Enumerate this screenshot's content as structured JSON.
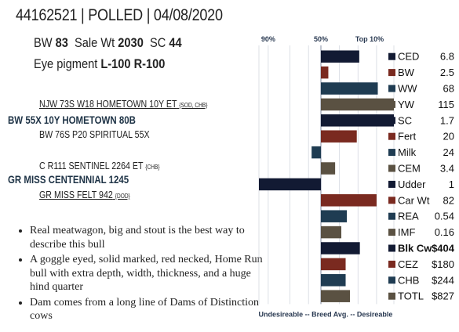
{
  "header": {
    "title": "44162521 | POLLED | 04/08/2020"
  },
  "stats": {
    "bw_label": "BW",
    "bw_value": "83",
    "sale_label": "Sale Wt",
    "sale_value": "2030",
    "sc_label": "SC",
    "sc_value": "44",
    "eye_label": "Eye pigment",
    "eye_value": "L-100  R-100"
  },
  "pedigree": {
    "sire_sire": "NJW 73S W18 HOMETOWN 10Y ET",
    "sire_sire_tag": "{SOD, CHB}",
    "sire": "BW 55X 10Y HOMETOWN 80B",
    "sire_dam": "BW 76S P20 SPIRITUAL 55X",
    "dam_sire": "C R111 SENTINEL 2264 ET",
    "dam_sire_tag": "{CHB}",
    "dam": "GR MISS CENTENNIAL 1245",
    "dam_dam": "GR MISS FELT 942",
    "dam_dam_tag": "{DOD}"
  },
  "bullets": [
    "Real meatwagon, big and stout is the best way to describe this bull",
    "A goggle eyed, solid marked, red necked, Home Run bull with extra depth, width, thickness, and a huge hind quarter",
    "Dam comes from a long line of Dams of Distinction cows"
  ],
  "chart_data": {
    "type": "bar",
    "orientation": "horizontal",
    "top_labels": [
      "90%",
      "50%",
      "Top 10%"
    ],
    "bottom_label": "Undesireable -- Breed Avg. --  Desireable",
    "scale_note": "bar extends right of breed-average line when desirable, left when undesirable; values are percentile-like scores from -1 (bottom) to 1 (top 10%)",
    "traits": [
      {
        "name": "CED",
        "value": "6.8",
        "score": 0.62,
        "color": "#121a33",
        "bold": false
      },
      {
        "name": "BW",
        "value": "2.5",
        "score": 0.12,
        "color": "#7a2a20",
        "bold": false
      },
      {
        "name": "WW",
        "value": "68",
        "score": 0.92,
        "color": "#1f3c52",
        "bold": false
      },
      {
        "name": "YW",
        "value": "115",
        "score": 1.18,
        "color": "#5a5142",
        "bold": false
      },
      {
        "name": "SC",
        "value": "1.7",
        "score": 1.18,
        "color": "#121a33",
        "bold": false
      },
      {
        "name": "Fert",
        "value": "20",
        "score": 0.58,
        "color": "#7a2a20",
        "bold": false
      },
      {
        "name": "Milk",
        "value": "24",
        "score": -0.15,
        "color": "#1f3c52",
        "bold": false
      },
      {
        "name": "CEM",
        "value": "3.4",
        "score": 0.23,
        "color": "#5a5142",
        "bold": false
      },
      {
        "name": "Udder",
        "value": "1",
        "score": -1.0,
        "color": "#121a33",
        "bold": false
      },
      {
        "name": "Car Wt",
        "value": "82",
        "score": 0.9,
        "color": "#7a2a20",
        "bold": false
      },
      {
        "name": "REA",
        "value": "0.54",
        "score": 0.42,
        "color": "#1f3c52",
        "bold": false
      },
      {
        "name": "IMF",
        "value": "0.16",
        "score": 0.33,
        "color": "#5a5142",
        "bold": false
      },
      {
        "name": "Blk Cw",
        "value": "$404",
        "score": 0.63,
        "color": "#121a33",
        "bold": true
      },
      {
        "name": "CEZ",
        "value": "$180",
        "score": 0.4,
        "color": "#7a2a20",
        "bold": false
      },
      {
        "name": "CHB",
        "value": "$244",
        "score": 0.4,
        "color": "#1f3c52",
        "bold": false
      },
      {
        "name": "TOTL",
        "value": "$827",
        "score": 0.47,
        "color": "#5a5142",
        "bold": false
      }
    ]
  }
}
